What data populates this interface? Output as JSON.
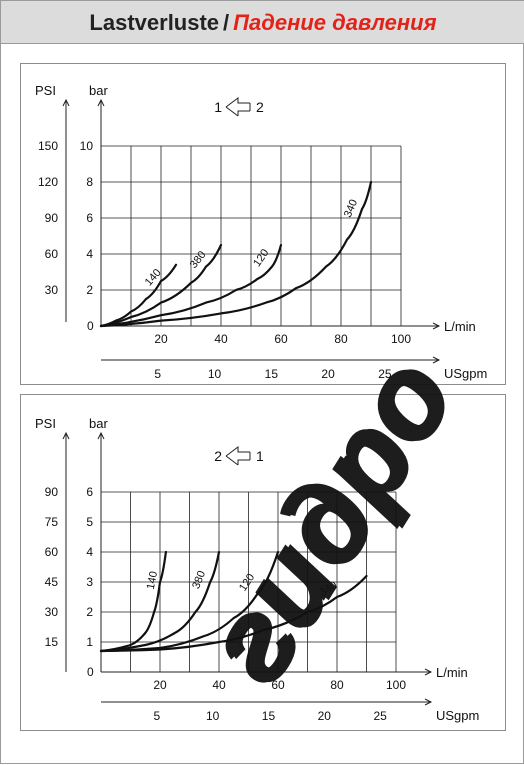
{
  "header": {
    "title_de": "Lastverluste",
    "separator": "/",
    "title_ru": "Падение давления",
    "colors": {
      "background": "#dcdcdc",
      "title": "#222222",
      "accent": "#e2231a"
    }
  },
  "watermark": {
    "text": "гидро",
    "colors": {
      "fill": "#1f6fd6",
      "shadow": "#ffd21a"
    }
  },
  "chart_data": [
    {
      "type": "line",
      "flow_direction": {
        "from": "1",
        "to": "2"
      },
      "x_label": "L/min",
      "x_ticks": [
        "20",
        "40",
        "60",
        "80",
        "100"
      ],
      "x2_label": "USgpm",
      "x2_ticks": [
        "5",
        "10",
        "15",
        "20",
        "25"
      ],
      "y_bar_label": "bar",
      "y_bar_ticks": [
        "2",
        "4",
        "6",
        "8",
        "10"
      ],
      "y_psi_label": "PSI",
      "y_psi_ticks": [
        "30",
        "60",
        "90",
        "120",
        "150"
      ],
      "origin_label": "0",
      "xlim": [
        0,
        110
      ],
      "ylim": [
        0,
        10
      ],
      "grid": true,
      "series": [
        {
          "name": "140",
          "points": [
            [
              0,
              0
            ],
            [
              5,
              0.3
            ],
            [
              10,
              0.8
            ],
            [
              15,
              1.5
            ],
            [
              20,
              2.5
            ],
            [
              25,
              3.4
            ]
          ]
        },
        {
          "name": "380",
          "points": [
            [
              0,
              0
            ],
            [
              10,
              0.5
            ],
            [
              20,
              1.3
            ],
            [
              30,
              2.4
            ],
            [
              35,
              3.3
            ],
            [
              40,
              4.5
            ]
          ]
        },
        {
          "name": "120",
          "points": [
            [
              0,
              0
            ],
            [
              20,
              0.6
            ],
            [
              35,
              1.3
            ],
            [
              45,
              2
            ],
            [
              52,
              2.6
            ],
            [
              57,
              3.3
            ],
            [
              60,
              4.5
            ]
          ]
        },
        {
          "name": "340",
          "points": [
            [
              0,
              0
            ],
            [
              20,
              0.3
            ],
            [
              40,
              0.7
            ],
            [
              55,
              1.3
            ],
            [
              65,
              2.1
            ],
            [
              75,
              3.3
            ],
            [
              82,
              4.8
            ],
            [
              87,
              6.5
            ],
            [
              90,
              8
            ]
          ]
        }
      ]
    },
    {
      "type": "line",
      "flow_direction": {
        "from": "2",
        "to": "1"
      },
      "x_label": "L/min",
      "x_ticks": [
        "20",
        "40",
        "60",
        "80",
        "100"
      ],
      "x2_label": "USgpm",
      "x2_ticks": [
        "5",
        "10",
        "15",
        "20",
        "25"
      ],
      "y_bar_label": "bar",
      "y_bar_ticks": [
        "1",
        "2",
        "3",
        "4",
        "5",
        "6"
      ],
      "y_psi_label": "PSI",
      "y_psi_ticks": [
        "15",
        "30",
        "45",
        "60",
        "75",
        "90"
      ],
      "origin_label": "0",
      "xlim": [
        0,
        110
      ],
      "ylim": [
        0,
        6
      ],
      "grid": true,
      "series": [
        {
          "name": "140",
          "points": [
            [
              0,
              0.7
            ],
            [
              10,
              0.9
            ],
            [
              15,
              1.3
            ],
            [
              18,
              2
            ],
            [
              20,
              3
            ],
            [
              22,
              4
            ]
          ]
        },
        {
          "name": "380",
          "points": [
            [
              0,
              0.7
            ],
            [
              15,
              0.9
            ],
            [
              25,
              1.3
            ],
            [
              32,
              2
            ],
            [
              37,
              3
            ],
            [
              40,
              4
            ]
          ]
        },
        {
          "name": "120",
          "points": [
            [
              0,
              0.7
            ],
            [
              20,
              0.8
            ],
            [
              35,
              1.2
            ],
            [
              45,
              1.8
            ],
            [
              53,
              2.6
            ],
            [
              60,
              4
            ]
          ]
        },
        {
          "name": "340",
          "points": [
            [
              0,
              0.7
            ],
            [
              20,
              0.75
            ],
            [
              40,
              1
            ],
            [
              55,
              1.4
            ],
            [
              70,
              2
            ],
            [
              80,
              2.5
            ],
            [
              90,
              3.2
            ]
          ]
        }
      ]
    }
  ]
}
